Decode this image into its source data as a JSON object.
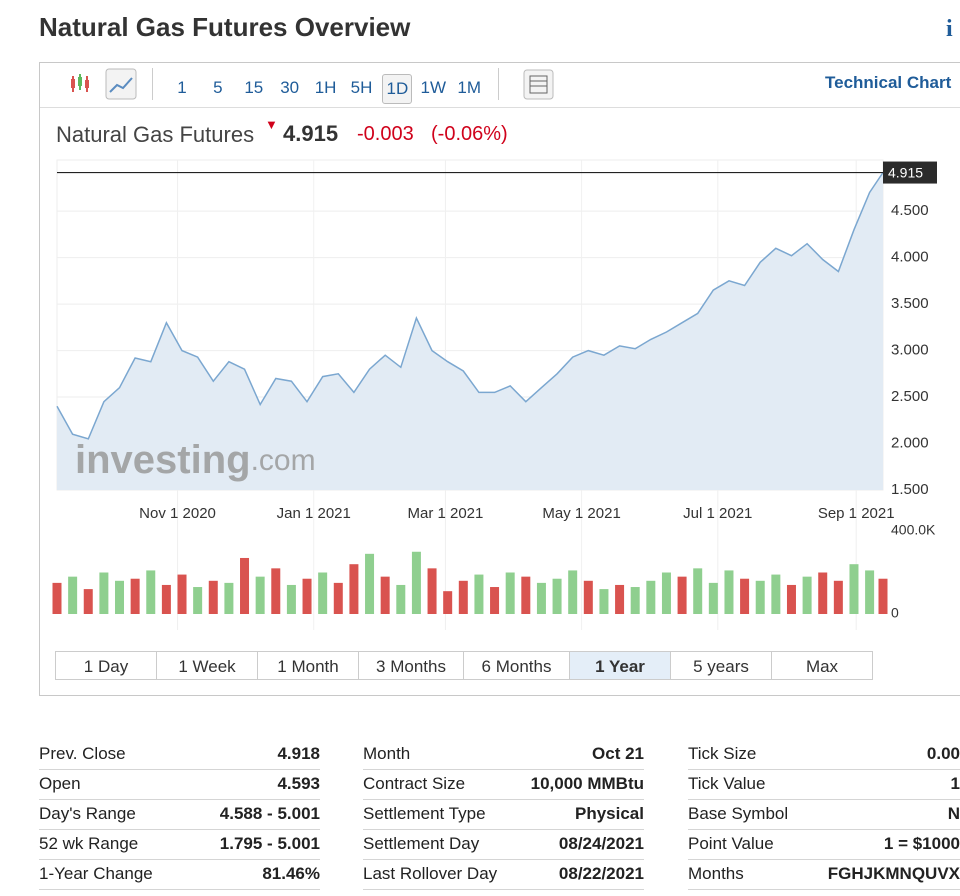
{
  "header": {
    "title": "Natural Gas Futures Overview"
  },
  "toolbar": {
    "intervals": [
      "1",
      "5",
      "15",
      "30",
      "1H",
      "5H",
      "1D",
      "1W",
      "1M"
    ],
    "active_interval": "1D",
    "technical_chart": "Technical Chart"
  },
  "quote": {
    "name": "Natural Gas Futures",
    "price": 4.915,
    "change": -0.003,
    "change_percent": "(-0.06%)"
  },
  "chart_data": {
    "type": "area",
    "watermark": [
      "investing",
      ".com"
    ],
    "line_color": "#7ba7d0",
    "fill_color": "#e2ebf4",
    "x": [
      "2020-09-08",
      "2020-09-15",
      "2020-09-22",
      "2020-09-29",
      "2020-10-06",
      "2020-10-13",
      "2020-10-20",
      "2020-10-27",
      "2020-11-03",
      "2020-11-10",
      "2020-11-17",
      "2020-11-24",
      "2020-12-01",
      "2020-12-08",
      "2020-12-15",
      "2020-12-22",
      "2020-12-29",
      "2021-01-05",
      "2021-01-12",
      "2021-01-19",
      "2021-01-26",
      "2021-02-02",
      "2021-02-09",
      "2021-02-16",
      "2021-02-23",
      "2021-03-02",
      "2021-03-09",
      "2021-03-16",
      "2021-03-23",
      "2021-03-30",
      "2021-04-06",
      "2021-04-13",
      "2021-04-20",
      "2021-04-27",
      "2021-05-04",
      "2021-05-11",
      "2021-05-18",
      "2021-05-25",
      "2021-06-01",
      "2021-06-08",
      "2021-06-15",
      "2021-06-22",
      "2021-06-29",
      "2021-07-06",
      "2021-07-13",
      "2021-07-20",
      "2021-07-27",
      "2021-08-03",
      "2021-08-10",
      "2021-08-17",
      "2021-08-24",
      "2021-08-31",
      "2021-09-07",
      "2021-09-13"
    ],
    "values": [
      2.4,
      2.1,
      2.05,
      2.45,
      2.6,
      2.92,
      2.88,
      3.3,
      3.0,
      2.93,
      2.67,
      2.88,
      2.8,
      2.42,
      2.7,
      2.67,
      2.45,
      2.72,
      2.75,
      2.55,
      2.8,
      2.95,
      2.82,
      3.35,
      3.0,
      2.88,
      2.78,
      2.55,
      2.55,
      2.62,
      2.45,
      2.6,
      2.75,
      2.93,
      3.0,
      2.95,
      3.05,
      3.02,
      3.12,
      3.2,
      3.3,
      3.4,
      3.65,
      3.75,
      3.7,
      3.95,
      4.1,
      4.02,
      4.15,
      3.98,
      3.85,
      4.3,
      4.7,
      4.915
    ],
    "xlim": [
      "2020-09-08",
      "2021-09-13"
    ],
    "xticks": [
      {
        "value": "2020-11-01",
        "label": "Nov 1 2020"
      },
      {
        "value": "2021-01-01",
        "label": "Jan 1 2021"
      },
      {
        "value": "2021-03-01",
        "label": "Mar 1 2021"
      },
      {
        "value": "2021-05-01",
        "label": "May 1 2021"
      },
      {
        "value": "2021-07-01",
        "label": "Jul 1 2021"
      },
      {
        "value": "2021-09-01",
        "label": "Sep 1 2021"
      }
    ],
    "ylim": [
      1.5,
      5.05
    ],
    "yticks": [
      {
        "value": 4.5,
        "label": "4.500"
      },
      {
        "value": 4.0,
        "label": "4.000"
      },
      {
        "value": 3.5,
        "label": "3.500"
      },
      {
        "value": 3.0,
        "label": "3.000"
      },
      {
        "value": 2.5,
        "label": "2.500"
      },
      {
        "value": 2.0,
        "label": "2.000"
      },
      {
        "value": 1.5,
        "label": "1.500"
      }
    ],
    "grid": true,
    "volume": {
      "values": [
        150000,
        180000,
        120000,
        200000,
        160000,
        170000,
        210000,
        140000,
        190000,
        130000,
        160000,
        150000,
        270000,
        180000,
        220000,
        140000,
        170000,
        200000,
        150000,
        240000,
        290000,
        180000,
        140000,
        300000,
        220000,
        110000,
        160000,
        190000,
        130000,
        200000,
        180000,
        150000,
        170000,
        210000,
        160000,
        120000,
        140000,
        130000,
        160000,
        200000,
        180000,
        220000,
        150000,
        210000,
        170000,
        160000,
        190000,
        140000,
        180000,
        200000,
        160000,
        240000,
        210000,
        170000
      ],
      "colors": [
        "#d9534f",
        "#8fcf8f",
        "#d9534f",
        "#8fcf8f",
        "#8fcf8f",
        "#d9534f",
        "#8fcf8f",
        "#d9534f",
        "#d9534f",
        "#8fcf8f",
        "#d9534f",
        "#8fcf8f",
        "#d9534f",
        "#8fcf8f",
        "#d9534f",
        "#8fcf8f",
        "#d9534f",
        "#8fcf8f",
        "#d9534f",
        "#d9534f",
        "#8fcf8f",
        "#d9534f",
        "#8fcf8f",
        "#8fcf8f",
        "#d9534f",
        "#d9534f",
        "#d9534f",
        "#8fcf8f",
        "#d9534f",
        "#8fcf8f",
        "#d9534f",
        "#8fcf8f",
        "#8fcf8f",
        "#8fcf8f",
        "#d9534f",
        "#8fcf8f",
        "#d9534f",
        "#8fcf8f",
        "#8fcf8f",
        "#8fcf8f",
        "#d9534f",
        "#8fcf8f",
        "#8fcf8f",
        "#8fcf8f",
        "#d9534f",
        "#8fcf8f",
        "#8fcf8f",
        "#d9534f",
        "#8fcf8f",
        "#d9534f",
        "#d9534f",
        "#8fcf8f",
        "#8fcf8f",
        "#d9534f"
      ],
      "ylim": [
        0,
        400000
      ],
      "yticks": [
        {
          "value": 400000,
          "label": "400.0K"
        },
        0
      ]
    }
  },
  "ranges": {
    "buttons": [
      "1 Day",
      "1 Week",
      "1 Month",
      "3 Months",
      "6 Months",
      "1 Year",
      "5 years",
      "Max"
    ],
    "active": "1 Year"
  },
  "stats": [
    [
      [
        "Prev. Close",
        "4.918"
      ],
      [
        "Open",
        "4.593"
      ],
      [
        "Day's Range",
        "4.588 - 5.001"
      ],
      [
        "52 wk Range",
        "1.795 - 5.001"
      ],
      [
        "1-Year Change",
        "81.46%"
      ]
    ],
    [
      [
        "Month",
        "Oct 21"
      ],
      [
        "Contract Size",
        "10,000 MMBtu"
      ],
      [
        "Settlement Type",
        "Physical"
      ],
      [
        "Settlement Day",
        "08/24/2021"
      ],
      [
        "Last Rollover Day",
        "08/22/2021"
      ]
    ],
    [
      [
        "Tick Size",
        "0.00"
      ],
      [
        "Tick Value",
        "1"
      ],
      [
        "Base Symbol",
        "N"
      ],
      [
        "Point Value",
        "1 = $1000"
      ],
      [
        "Months",
        "FGHJKMNQUVX"
      ]
    ]
  ]
}
